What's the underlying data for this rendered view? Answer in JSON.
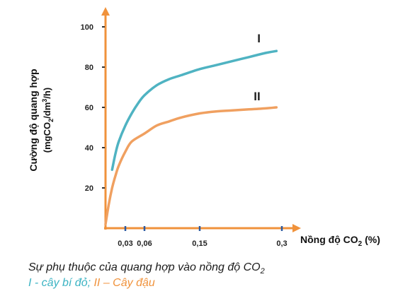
{
  "chart_data": {
    "type": "line",
    "ylabel_line1": "Cường độ quang hợp",
    "ylabel_line2_pre": "(mgCO",
    "ylabel_line2_sub": "2",
    "ylabel_line2_mid": "/dm",
    "ylabel_line2_sup": "3",
    "ylabel_line2_post": "/h)",
    "xlabel_pre": "Nồng độ CO",
    "xlabel_sub": "2",
    "xlabel_post": " (%)",
    "yticks": [
      20,
      40,
      60,
      80,
      100
    ],
    "ytick_labels": [
      "20",
      "40",
      "60",
      "80",
      "100"
    ],
    "xticks": [
      0.03,
      0.06,
      0.15,
      0.3
    ],
    "xtick_labels": [
      "0,03",
      "0,06",
      "0,15",
      "0,3"
    ],
    "ylim": [
      0,
      110
    ],
    "grid": false,
    "series": [
      {
        "name": "I",
        "color": "#4fb3c2",
        "x": [
          0.01,
          0.015,
          0.02,
          0.03,
          0.04,
          0.05,
          0.06,
          0.08,
          0.1,
          0.12,
          0.15,
          0.18,
          0.21,
          0.24,
          0.27,
          0.29
        ],
        "y": [
          29,
          37,
          43,
          51,
          57,
          62,
          66,
          71,
          74,
          76,
          79,
          81,
          83,
          85,
          87,
          88
        ]
      },
      {
        "name": "II",
        "color": "#f0a060",
        "x": [
          0.0,
          0.005,
          0.01,
          0.015,
          0.02,
          0.03,
          0.04,
          0.06,
          0.08,
          0.1,
          0.12,
          0.15,
          0.18,
          0.21,
          0.24,
          0.27,
          0.29
        ],
        "y": [
          2,
          12,
          20,
          26,
          31,
          38,
          43,
          47,
          51,
          53,
          55,
          57,
          58,
          58.5,
          59,
          59.5,
          60
        ]
      }
    ]
  },
  "caption": {
    "line1_pre": "Sự phụ thuộc của quang hợp vào nồng độ CO",
    "line1_sub": "2",
    "legend_one": "I - cây bí đỏ",
    "legend_sep": "; ",
    "legend_two": "II – Cây đậu"
  },
  "colors": {
    "axis": "#f0923b",
    "tick": "#2c5aa0"
  }
}
